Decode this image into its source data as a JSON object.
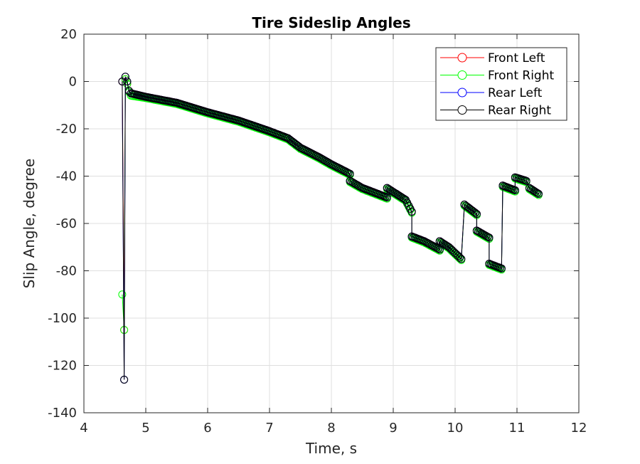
{
  "chart_data": {
    "type": "line",
    "title": "Tire Sideslip Angles",
    "xlabel": "Time, s",
    "ylabel": "Slip Angle, degree",
    "xlim": [
      4,
      12
    ],
    "ylim": [
      -140,
      20
    ],
    "xticks": [
      4,
      5,
      6,
      7,
      8,
      9,
      10,
      11,
      12
    ],
    "yticks": [
      20,
      0,
      -20,
      -40,
      -60,
      -80,
      -100,
      -120,
      -140
    ],
    "grid": true,
    "legend_position": "top-right",
    "marker": "circle",
    "series": [
      {
        "name": "Front Left",
        "color": "#ff0000",
        "points": [
          [
            4.62,
            0
          ],
          [
            4.65,
            -105
          ],
          [
            4.67,
            1
          ],
          [
            4.7,
            -1
          ],
          [
            4.73,
            -4
          ],
          [
            4.76,
            -5
          ],
          [
            5.0,
            -6.5
          ],
          [
            5.5,
            -9
          ],
          [
            6.0,
            -13
          ],
          [
            6.5,
            -16.5
          ],
          [
            7.0,
            -21
          ],
          [
            7.3,
            -24
          ],
          [
            7.5,
            -28
          ],
          [
            7.8,
            -32
          ],
          [
            8.0,
            -35
          ],
          [
            8.3,
            -39
          ],
          [
            8.3,
            -42
          ],
          [
            8.5,
            -45
          ],
          [
            8.7,
            -47
          ],
          [
            8.9,
            -49
          ],
          [
            8.9,
            -45
          ],
          [
            9.2,
            -50
          ],
          [
            9.3,
            -55
          ],
          [
            9.3,
            -65.5
          ],
          [
            9.5,
            -67.5
          ],
          [
            9.75,
            -71
          ],
          [
            9.75,
            -67.5
          ],
          [
            9.9,
            -70
          ],
          [
            10.1,
            -75
          ],
          [
            10.15,
            -52
          ],
          [
            10.35,
            -56
          ],
          [
            10.35,
            -63
          ],
          [
            10.55,
            -66
          ],
          [
            10.55,
            -77
          ],
          [
            10.75,
            -79
          ],
          [
            10.77,
            -44
          ],
          [
            10.97,
            -46
          ],
          [
            10.97,
            -40.5
          ],
          [
            11.15,
            -42
          ],
          [
            11.2,
            -45
          ],
          [
            11.35,
            -47.5
          ]
        ]
      },
      {
        "name": "Front Right",
        "color": "#00ff00",
        "points": [
          [
            4.62,
            -90
          ],
          [
            4.65,
            -105
          ],
          [
            4.67,
            1
          ],
          [
            4.7,
            -1
          ],
          [
            4.73,
            -4.5
          ],
          [
            4.76,
            -6
          ],
          [
            5.0,
            -7
          ],
          [
            5.5,
            -9.5
          ],
          [
            6.0,
            -13.5
          ],
          [
            6.5,
            -17
          ],
          [
            7.0,
            -21.5
          ],
          [
            7.3,
            -24.5
          ],
          [
            7.5,
            -28.5
          ],
          [
            7.8,
            -32.5
          ],
          [
            8.0,
            -35.5
          ],
          [
            8.3,
            -39.5
          ],
          [
            8.3,
            -42.5
          ],
          [
            8.5,
            -45.5
          ],
          [
            8.7,
            -47.5
          ],
          [
            8.9,
            -49.5
          ],
          [
            8.9,
            -45.5
          ],
          [
            9.2,
            -50.5
          ],
          [
            9.3,
            -55.5
          ],
          [
            9.3,
            -66
          ],
          [
            9.5,
            -68
          ],
          [
            9.75,
            -71.5
          ],
          [
            9.75,
            -68
          ],
          [
            9.9,
            -70.5
          ],
          [
            10.1,
            -75.5
          ],
          [
            10.15,
            -52.5
          ],
          [
            10.35,
            -56.5
          ],
          [
            10.35,
            -63.5
          ],
          [
            10.55,
            -66.5
          ],
          [
            10.55,
            -77.5
          ],
          [
            10.75,
            -79.5
          ],
          [
            10.77,
            -44.5
          ],
          [
            10.97,
            -46.5
          ],
          [
            10.97,
            -41
          ],
          [
            11.15,
            -42.5
          ],
          [
            11.2,
            -45.5
          ],
          [
            11.35,
            -48
          ]
        ]
      },
      {
        "name": "Rear Left",
        "color": "#0000ff",
        "points": [
          [
            4.62,
            0
          ],
          [
            4.65,
            -126
          ],
          [
            4.67,
            2
          ],
          [
            4.7,
            0
          ],
          [
            4.73,
            -4
          ],
          [
            4.76,
            -5
          ],
          [
            5.0,
            -6.5
          ],
          [
            5.5,
            -9
          ],
          [
            6.0,
            -13
          ],
          [
            6.5,
            -16.5
          ],
          [
            7.0,
            -21
          ],
          [
            7.3,
            -24
          ],
          [
            7.5,
            -28
          ],
          [
            7.8,
            -32
          ],
          [
            8.0,
            -35
          ],
          [
            8.3,
            -39
          ],
          [
            8.3,
            -42
          ],
          [
            8.5,
            -45
          ],
          [
            8.7,
            -47
          ],
          [
            8.9,
            -49
          ],
          [
            8.9,
            -45
          ],
          [
            9.2,
            -50
          ],
          [
            9.3,
            -55
          ],
          [
            9.3,
            -65.5
          ],
          [
            9.5,
            -67.5
          ],
          [
            9.75,
            -71
          ],
          [
            9.75,
            -67.5
          ],
          [
            9.9,
            -70
          ],
          [
            10.1,
            -75
          ],
          [
            10.15,
            -52
          ],
          [
            10.35,
            -56
          ],
          [
            10.35,
            -63
          ],
          [
            10.55,
            -66
          ],
          [
            10.55,
            -77
          ],
          [
            10.75,
            -79
          ],
          [
            10.77,
            -44
          ],
          [
            10.97,
            -46
          ],
          [
            10.97,
            -40.5
          ],
          [
            11.15,
            -42
          ],
          [
            11.2,
            -45
          ],
          [
            11.35,
            -47.5
          ]
        ]
      },
      {
        "name": "Rear Right",
        "color": "#000000",
        "points": [
          [
            4.62,
            0
          ],
          [
            4.65,
            -126
          ],
          [
            4.67,
            2
          ],
          [
            4.7,
            0
          ],
          [
            4.73,
            -4
          ],
          [
            4.76,
            -5
          ],
          [
            5.0,
            -6.5
          ],
          [
            5.5,
            -9
          ],
          [
            6.0,
            -13
          ],
          [
            6.5,
            -16.5
          ],
          [
            7.0,
            -21
          ],
          [
            7.3,
            -24
          ],
          [
            7.5,
            -28
          ],
          [
            7.8,
            -32
          ],
          [
            8.0,
            -35
          ],
          [
            8.3,
            -39
          ],
          [
            8.3,
            -42
          ],
          [
            8.5,
            -45
          ],
          [
            8.7,
            -47
          ],
          [
            8.9,
            -49
          ],
          [
            8.9,
            -45
          ],
          [
            9.2,
            -50
          ],
          [
            9.3,
            -55
          ],
          [
            9.3,
            -65.5
          ],
          [
            9.5,
            -67.5
          ],
          [
            9.75,
            -71
          ],
          [
            9.75,
            -67.5
          ],
          [
            9.9,
            -70
          ],
          [
            10.1,
            -75
          ],
          [
            10.15,
            -52
          ],
          [
            10.35,
            -56
          ],
          [
            10.35,
            -63
          ],
          [
            10.55,
            -66
          ],
          [
            10.55,
            -77
          ],
          [
            10.75,
            -79
          ],
          [
            10.77,
            -44
          ],
          [
            10.97,
            -46
          ],
          [
            10.97,
            -40.5
          ],
          [
            11.15,
            -42
          ],
          [
            11.2,
            -45
          ],
          [
            11.35,
            -47.5
          ]
        ]
      }
    ]
  }
}
